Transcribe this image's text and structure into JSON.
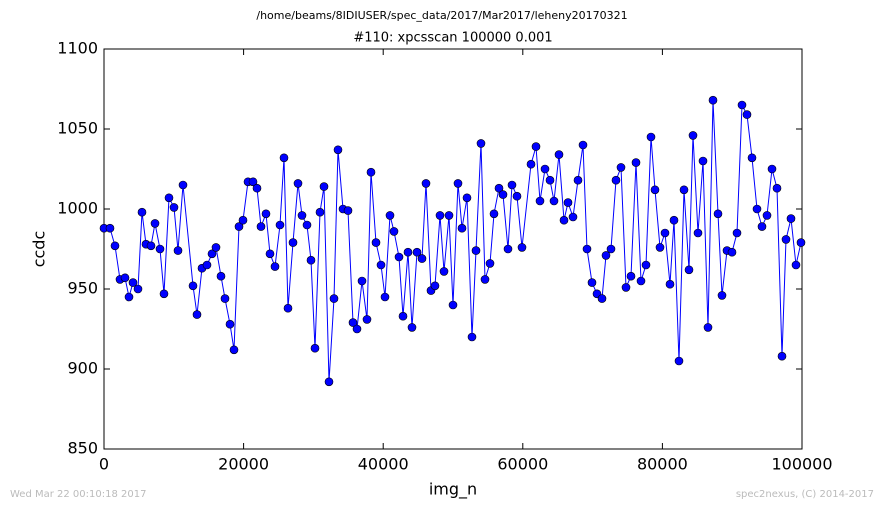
{
  "chart_data": {
    "type": "line",
    "suptitle": "/home/beams/8IDIUSER/spec_data/2017/Mar2017/leheny20170321",
    "title": "#110: xpcsscan 100000 0.001",
    "x_label": "img_n",
    "y_label": "ccdc",
    "footer_left": "Wed Mar 22 00:10:18 2017",
    "footer_right": "spec2nexus, (C) 2014-2017",
    "xlim": [
      0,
      100000
    ],
    "xticks": [
      0,
      20000,
      40000,
      60000,
      80000,
      100000
    ],
    "ylim": [
      850,
      1100
    ],
    "yticks": [
      850,
      900,
      950,
      1000,
      1050,
      1100
    ],
    "grid": false,
    "x": [
      0,
      860,
      1576,
      2292,
      3009,
      3582,
      4155,
      4871,
      5444,
      6017,
      6734,
      7307,
      8023,
      8596,
      9312,
      10029,
      10602,
      11318,
      12751,
      13324,
      14040,
      14756,
      15473,
      16046,
      16762,
      17335,
      18052,
      18625,
      19341,
      19914,
      20630,
      21347,
      21920,
      22493,
      23209,
      23782,
      24499,
      25215,
      25788,
      26361,
      27078,
      27794,
      28367,
      29083,
      29656,
      30229,
      30946,
      31519,
      32235,
      32951,
      33524,
      34241,
      34957,
      35673,
      36246,
      36963,
      37679,
      38252,
      38969,
      39685,
      40258,
      40974,
      41547,
      42264,
      42837,
      43553,
      44126,
      44843,
      45559,
      46132,
      46848,
      47421,
      48138,
      48711,
      49427,
      50000,
      50716,
      51289,
      52006,
      52722,
      53295,
      54011,
      54585,
      55301,
      55874,
      56590,
      57163,
      57880,
      58453,
      59169,
      59885,
      61175,
      61891,
      62464,
      63181,
      63897,
      64470,
      65186,
      65903,
      66476,
      67192,
      67908,
      68625,
      69198,
      69914,
      70630,
      71347,
      71920,
      72636,
      73352,
      74069,
      74785,
      75501,
      76218,
      76934,
      77650,
      78367,
      78940,
      79656,
      80372,
      81089,
      81662,
      82378,
      83095,
      83811,
      84384,
      85100,
      85817,
      86533,
      87249,
      87966,
      88539,
      89255,
      89971,
      90688,
      91404,
      92120,
      92837,
      93553,
      94269,
      94986,
      95702,
      96418,
      97135,
      97708,
      98424,
      99140,
      99857
    ],
    "series": [
      {
        "name": "ccdc",
        "color": "#0000ff",
        "values": [
          988,
          988,
          977,
          956,
          957,
          945,
          954,
          950,
          998,
          978,
          977,
          991,
          975,
          947,
          1007,
          1001,
          974,
          1015,
          952,
          934,
          963,
          965,
          972,
          976,
          958,
          944,
          928,
          912,
          989,
          993,
          1017,
          1017,
          1013,
          989,
          997,
          972,
          964,
          990,
          1032,
          938,
          979,
          1016,
          996,
          990,
          968,
          913,
          998,
          1014,
          892,
          944,
          1037,
          1000,
          999,
          929,
          925,
          955,
          931,
          1023,
          979,
          965,
          945,
          996,
          986,
          970,
          933,
          973,
          926,
          973,
          969,
          1016,
          949,
          952,
          996,
          961,
          996,
          940,
          1016,
          988,
          1007,
          920,
          974,
          1041,
          956,
          966,
          997,
          1013,
          1009,
          975,
          1015,
          1008,
          976,
          1028,
          1039,
          1005,
          1025,
          1018,
          1005,
          1034,
          993,
          1004,
          995,
          1018,
          1040,
          975,
          954,
          947,
          944,
          971,
          975,
          1018,
          1026,
          951,
          958,
          1029,
          955,
          965,
          1045,
          1012,
          976,
          985,
          953,
          993,
          905,
          1012,
          962,
          1046,
          985,
          1030,
          926,
          1068,
          997,
          946,
          974,
          973,
          985,
          1065,
          1059,
          1032,
          1000,
          989,
          996,
          1025,
          1013,
          908,
          981,
          994,
          965,
          979
        ]
      }
    ]
  }
}
